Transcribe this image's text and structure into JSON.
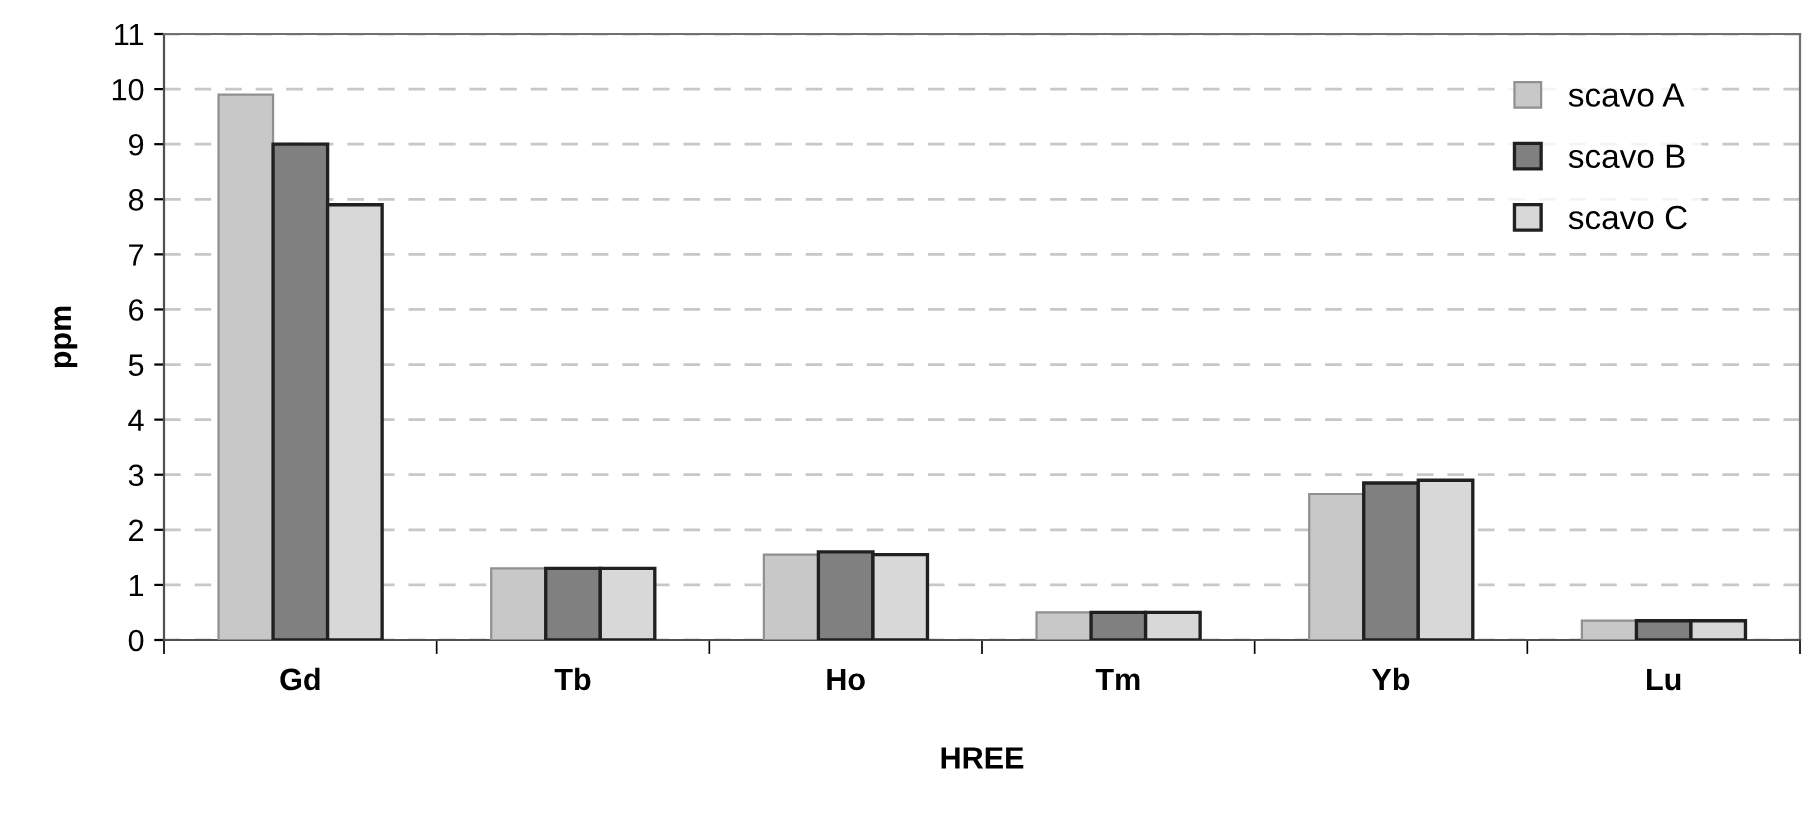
{
  "chart_data": {
    "type": "bar",
    "xlabel": "HREE",
    "ylabel": "ppm",
    "categories": [
      "Gd",
      "Tb",
      "Ho",
      "Tm",
      "Yb",
      "Lu"
    ],
    "series": [
      {
        "name": "scavo A",
        "color": "#c8c8c8",
        "values": [
          9.9,
          1.3,
          1.55,
          0.5,
          2.65,
          0.35
        ]
      },
      {
        "name": "scavo B",
        "color": "#808080",
        "values": [
          9.0,
          1.3,
          1.6,
          0.5,
          2.85,
          0.35
        ]
      },
      {
        "name": "scavo C",
        "color": "#d8d8d8",
        "values": [
          7.9,
          1.3,
          1.55,
          0.5,
          2.9,
          0.35
        ]
      }
    ],
    "ylim": [
      0,
      11
    ],
    "yticks": [
      0,
      1,
      2,
      3,
      4,
      5,
      6,
      7,
      8,
      9,
      10,
      11
    ],
    "grid": "y",
    "legend": "top right"
  }
}
